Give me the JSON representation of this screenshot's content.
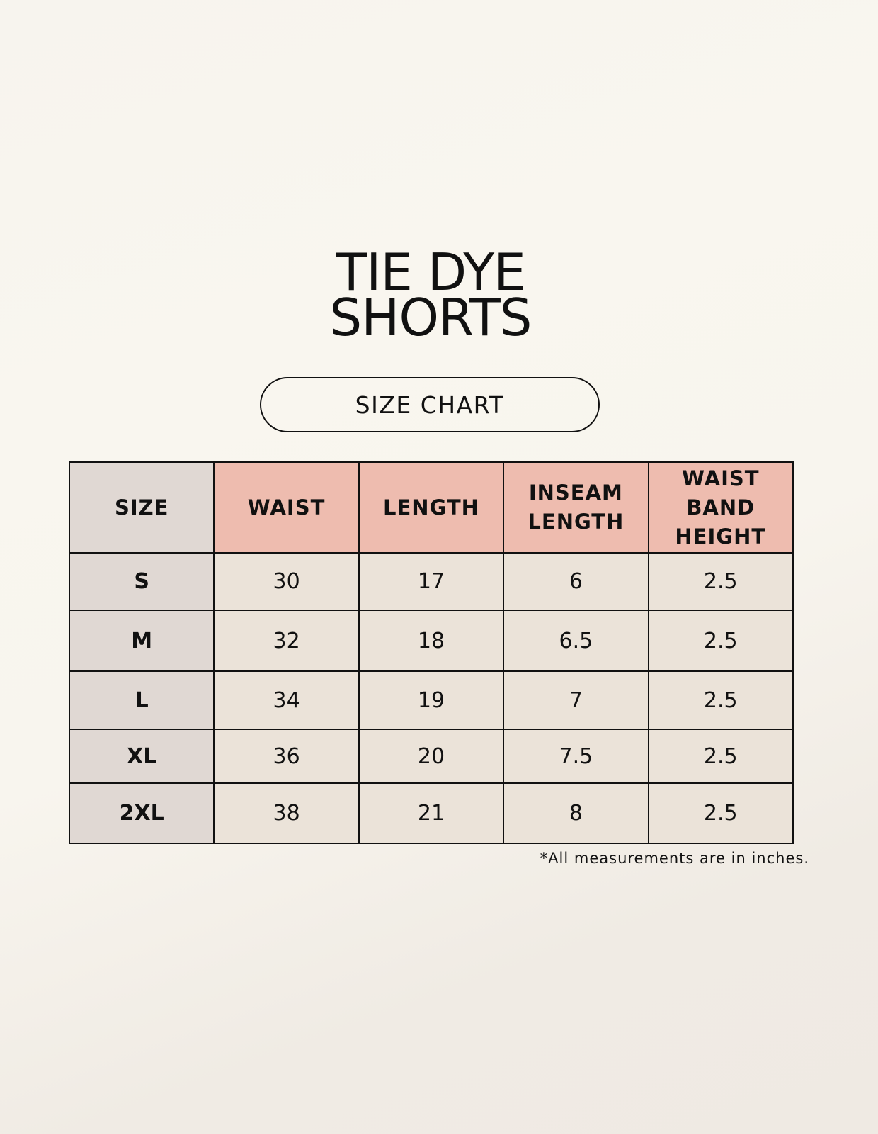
{
  "title_line1": "TIE DYE",
  "title_line2": "SHORTS",
  "subtitle": "SIZE CHART",
  "table": {
    "headers": [
      "SIZE",
      "WAIST",
      "LENGTH",
      "INSEAM LENGTH",
      "WAIST BAND HEIGHT"
    ],
    "rows": [
      [
        "S",
        "30",
        "17",
        "6",
        "2.5"
      ],
      [
        "M",
        "32",
        "18",
        "6.5",
        "2.5"
      ],
      [
        "L",
        "34",
        "19",
        "7",
        "2.5"
      ],
      [
        "XL",
        "36",
        "20",
        "7.5",
        "2.5"
      ],
      [
        "2XL",
        "38",
        "21",
        "8",
        "2.5"
      ]
    ]
  },
  "footnote": "*All measurements are in inches.",
  "colors": {
    "header_accent": "#eebcaf",
    "size_column": "#e0d8d3",
    "cell_bg": "#ebe3d9"
  }
}
